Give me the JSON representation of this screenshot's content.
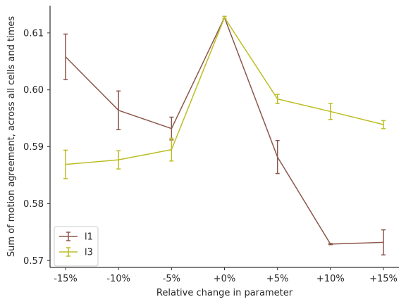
{
  "chart_data": {
    "type": "line",
    "categories": [
      "-15%",
      "-10%",
      "-5%",
      "+0%",
      "+5%",
      "+10%",
      "+15%"
    ],
    "xlabel": "Relative change in parameter",
    "ylabel": "Sum of motion agreement, across all cells and times",
    "ylim": [
      0.5688,
      0.6148
    ],
    "yticks": [
      "0.57",
      "0.58",
      "0.59",
      "0.60",
      "0.61"
    ],
    "ytick_values": [
      0.57,
      0.58,
      0.59,
      0.6,
      0.61
    ],
    "grid": false,
    "legend": "lower-left",
    "series": [
      {
        "name": "l1",
        "color": "#8c564b",
        "values": [
          0.6058,
          0.5964,
          0.5932,
          0.6127,
          0.5882,
          0.5729,
          0.5732
        ],
        "errors": [
          0.004,
          0.0034,
          0.002,
          0.0002,
          0.0029,
          0.0001,
          0.0022
        ]
      },
      {
        "name": "l3",
        "color": "#bcbd22",
        "values": [
          0.5869,
          0.5877,
          0.5895,
          0.6127,
          0.5984,
          0.5962,
          0.5939
        ],
        "errors": [
          0.0025,
          0.0016,
          0.002,
          0.0002,
          0.0008,
          0.0014,
          0.0007
        ]
      }
    ]
  }
}
